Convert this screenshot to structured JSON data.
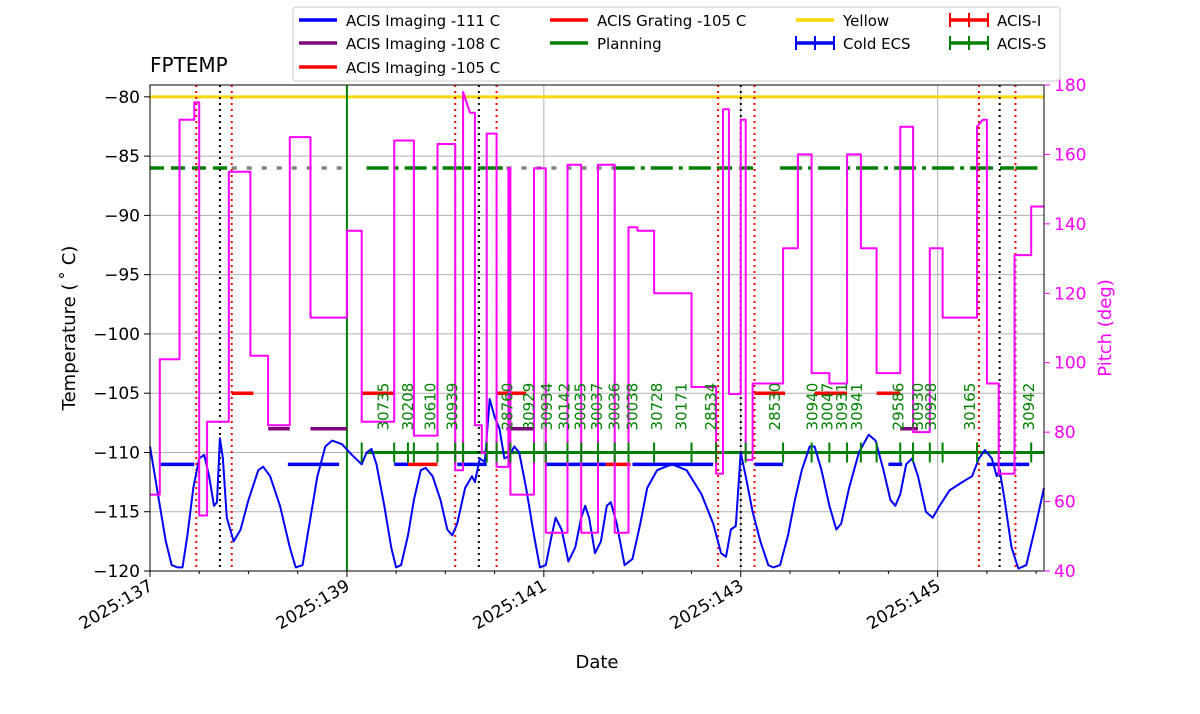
{
  "chart_data": {
    "type": "line",
    "title": "FPTEMP",
    "xlabel": "Date",
    "ylabel": "Temperature ( ˚ C)",
    "ylabel_text": "Temperature ($^\\circ$C)",
    "y2label": "Pitch (deg)",
    "xlim": [
      137.0,
      146.08
    ],
    "ylim": [
      -120,
      -79
    ],
    "y2lim": [
      40,
      180
    ],
    "grid": true,
    "x_ticks": [
      137,
      139,
      141,
      143,
      145
    ],
    "x_tick_labels": [
      "2025:137",
      "2025:139",
      "2025:141",
      "2025:143",
      "2025:145"
    ],
    "y_ticks": [
      -120,
      -115,
      -110,
      -105,
      -100,
      -95,
      -90,
      -85,
      -80
    ],
    "y_tick_labels": [
      "−120",
      "−115",
      "−110",
      "−105",
      "−100",
      "−95",
      "−90",
      "−85",
      "−80"
    ],
    "y2_ticks": [
      40,
      60,
      80,
      100,
      120,
      140,
      160,
      180
    ],
    "y2_tick_labels": [
      "40",
      "60",
      "80",
      "100",
      "120",
      "140",
      "160",
      "180"
    ],
    "colors": {
      "temp": "#0000ff",
      "pitch": "#ff00ff",
      "yellow": "#ffd700",
      "planning": "#008000",
      "red": "#ff0000",
      "purple": "#800080",
      "grey": "#808080",
      "black": "#000000"
    },
    "legend": {
      "placement": "top",
      "entries": [
        {
          "label": "ACIS Imaging -111 C",
          "color": "#0000ff",
          "marker": "line"
        },
        {
          "label": "ACIS Imaging -108 C",
          "color": "#800080",
          "marker": "line"
        },
        {
          "label": "ACIS Imaging -105 C",
          "color": "#ff0000",
          "marker": "line"
        },
        {
          "label": "ACIS Grating -105 C",
          "color": "#ff0000",
          "marker": "line"
        },
        {
          "label": "Planning",
          "color": "#008000",
          "marker": "line"
        },
        {
          "label": "Yellow",
          "color": "#ffd700",
          "marker": "line"
        },
        {
          "label": "Cold ECS",
          "color": "#0000ff",
          "marker": "plus"
        },
        {
          "label": "ACIS-I",
          "color": "#ff0000",
          "marker": "plus"
        },
        {
          "label": "ACIS-S",
          "color": "#008000",
          "marker": "plus"
        }
      ]
    },
    "yellow_limit": -80,
    "planning_limit_upper": -86,
    "planning_limit_lower": -110,
    "temperature_series": [
      [
        137.0,
        -109.5
      ],
      [
        137.08,
        -113.5
      ],
      [
        137.16,
        -117.5
      ],
      [
        137.22,
        -119.5
      ],
      [
        137.28,
        -119.7
      ],
      [
        137.33,
        -119.7
      ],
      [
        137.38,
        -117
      ],
      [
        137.44,
        -113
      ],
      [
        137.5,
        -110.5
      ],
      [
        137.55,
        -110.2
      ],
      [
        137.6,
        -112
      ],
      [
        137.65,
        -114.5
      ],
      [
        137.68,
        -114.2
      ],
      [
        137.71,
        -108.8
      ],
      [
        137.74,
        -110.5
      ],
      [
        137.78,
        -115.5
      ],
      [
        137.85,
        -117.5
      ],
      [
        137.92,
        -116.5
      ],
      [
        138.0,
        -114
      ],
      [
        138.1,
        -111.5
      ],
      [
        138.15,
        -111.2
      ],
      [
        138.22,
        -112
      ],
      [
        138.32,
        -114.5
      ],
      [
        138.42,
        -118
      ],
      [
        138.48,
        -119.7
      ],
      [
        138.55,
        -119.5
      ],
      [
        138.62,
        -116
      ],
      [
        138.7,
        -112
      ],
      [
        138.78,
        -109.5
      ],
      [
        138.85,
        -109
      ],
      [
        138.95,
        -109.3
      ],
      [
        139.05,
        -110.2
      ],
      [
        139.15,
        -111
      ],
      [
        139.2,
        -110
      ],
      [
        139.25,
        -109.7
      ],
      [
        139.3,
        -111
      ],
      [
        139.38,
        -114.5
      ],
      [
        139.45,
        -118
      ],
      [
        139.5,
        -119.7
      ],
      [
        139.55,
        -119.5
      ],
      [
        139.62,
        -117
      ],
      [
        139.68,
        -114
      ],
      [
        139.75,
        -111.5
      ],
      [
        139.8,
        -111.3
      ],
      [
        139.87,
        -112
      ],
      [
        139.95,
        -114
      ],
      [
        140.02,
        -116.5
      ],
      [
        140.07,
        -117
      ],
      [
        140.12,
        -116
      ],
      [
        140.2,
        -113
      ],
      [
        140.27,
        -112
      ],
      [
        140.3,
        -112.5
      ],
      [
        140.35,
        -110.5
      ],
      [
        140.4,
        -110.8
      ],
      [
        140.45,
        -105.5
      ],
      [
        140.5,
        -107
      ],
      [
        140.55,
        -108
      ],
      [
        140.6,
        -110.5
      ],
      [
        140.65,
        -110.3
      ],
      [
        140.7,
        -109.5
      ],
      [
        140.75,
        -110
      ],
      [
        140.82,
        -113
      ],
      [
        140.9,
        -117
      ],
      [
        140.96,
        -119.7
      ],
      [
        141.02,
        -119.5
      ],
      [
        141.08,
        -117
      ],
      [
        141.12,
        -115.5
      ],
      [
        141.18,
        -116.5
      ],
      [
        141.25,
        -119.2
      ],
      [
        141.32,
        -118
      ],
      [
        141.38,
        -115.5
      ],
      [
        141.42,
        -114.5
      ],
      [
        141.46,
        -115.5
      ],
      [
        141.52,
        -118.5
      ],
      [
        141.58,
        -117.5
      ],
      [
        141.64,
        -114.5
      ],
      [
        141.68,
        -114.2
      ],
      [
        141.74,
        -116
      ],
      [
        141.82,
        -119.5
      ],
      [
        141.9,
        -119
      ],
      [
        141.98,
        -116
      ],
      [
        142.05,
        -113
      ],
      [
        142.15,
        -111.5
      ],
      [
        142.3,
        -111
      ],
      [
        142.45,
        -111.5
      ],
      [
        142.6,
        -113.5
      ],
      [
        142.72,
        -116
      ],
      [
        142.8,
        -118.5
      ],
      [
        142.85,
        -118.8
      ],
      [
        142.9,
        -116.5
      ],
      [
        142.95,
        -116.2
      ],
      [
        143.0,
        -110
      ],
      [
        143.05,
        -112
      ],
      [
        143.12,
        -115
      ],
      [
        143.2,
        -117.5
      ],
      [
        143.28,
        -119.5
      ],
      [
        143.33,
        -119.7
      ],
      [
        143.4,
        -119.5
      ],
      [
        143.48,
        -117
      ],
      [
        143.55,
        -114
      ],
      [
        143.62,
        -111.5
      ],
      [
        143.7,
        -109.5
      ],
      [
        143.75,
        -109.5
      ],
      [
        143.82,
        -111.5
      ],
      [
        143.9,
        -114.5
      ],
      [
        143.97,
        -116.5
      ],
      [
        144.02,
        -116
      ],
      [
        144.1,
        -113
      ],
      [
        144.2,
        -110
      ],
      [
        144.3,
        -108.5
      ],
      [
        144.37,
        -109
      ],
      [
        144.45,
        -111.5
      ],
      [
        144.52,
        -114
      ],
      [
        144.57,
        -114.5
      ],
      [
        144.62,
        -113.5
      ],
      [
        144.68,
        -111
      ],
      [
        144.74,
        -110.5
      ],
      [
        144.8,
        -112
      ],
      [
        144.88,
        -115
      ],
      [
        144.95,
        -115.5
      ],
      [
        145.02,
        -114.5
      ],
      [
        145.12,
        -113.2
      ],
      [
        145.25,
        -112.5
      ],
      [
        145.35,
        -112
      ],
      [
        145.42,
        -110.5
      ],
      [
        145.48,
        -109.8
      ],
      [
        145.55,
        -110.5
      ],
      [
        145.6,
        -112
      ],
      [
        145.63,
        -111.5
      ],
      [
        145.68,
        -114
      ],
      [
        145.75,
        -118
      ],
      [
        145.82,
        -119.8
      ],
      [
        145.9,
        -119.5
      ],
      [
        146.0,
        -116
      ],
      [
        146.08,
        -113
      ]
    ],
    "pitch_series": [
      [
        137.0,
        62
      ],
      [
        137.1,
        62
      ],
      [
        137.1,
        101
      ],
      [
        137.3,
        101
      ],
      [
        137.3,
        170
      ],
      [
        137.45,
        170
      ],
      [
        137.45,
        175
      ],
      [
        137.5,
        175
      ],
      [
        137.5,
        56
      ],
      [
        137.58,
        56
      ],
      [
        137.58,
        83
      ],
      [
        137.8,
        83
      ],
      [
        137.8,
        155
      ],
      [
        138.02,
        155
      ],
      [
        138.02,
        102
      ],
      [
        138.2,
        102
      ],
      [
        138.2,
        82
      ],
      [
        138.42,
        82
      ],
      [
        138.42,
        165
      ],
      [
        138.63,
        165
      ],
      [
        138.63,
        113
      ],
      [
        139.0,
        113
      ],
      [
        139.0,
        138
      ],
      [
        139.15,
        138
      ],
      [
        139.15,
        83
      ],
      [
        139.48,
        83
      ],
      [
        139.48,
        164
      ],
      [
        139.68,
        164
      ],
      [
        139.68,
        79
      ],
      [
        139.92,
        79
      ],
      [
        139.92,
        163
      ],
      [
        140.1,
        163
      ],
      [
        140.1,
        69
      ],
      [
        140.18,
        69
      ],
      [
        140.18,
        178
      ],
      [
        140.25,
        172
      ],
      [
        140.3,
        172
      ],
      [
        140.3,
        82
      ],
      [
        140.37,
        82
      ],
      [
        140.37,
        74
      ],
      [
        140.42,
        74
      ],
      [
        140.42,
        166
      ],
      [
        140.52,
        166
      ],
      [
        140.52,
        70
      ],
      [
        140.64,
        70
      ],
      [
        140.64,
        156
      ],
      [
        140.66,
        156
      ],
      [
        140.66,
        62
      ],
      [
        140.9,
        62
      ],
      [
        140.9,
        156
      ],
      [
        141.02,
        156
      ],
      [
        141.02,
        51
      ],
      [
        141.24,
        51
      ],
      [
        141.24,
        157
      ],
      [
        141.38,
        157
      ],
      [
        141.38,
        51
      ],
      [
        141.55,
        51
      ],
      [
        141.55,
        157
      ],
      [
        141.72,
        157
      ],
      [
        141.72,
        51
      ],
      [
        141.86,
        51
      ],
      [
        141.86,
        139
      ],
      [
        141.95,
        139
      ],
      [
        141.95,
        138
      ],
      [
        142.12,
        138
      ],
      [
        142.12,
        120
      ],
      [
        142.5,
        120
      ],
      [
        142.5,
        93
      ],
      [
        142.75,
        93
      ],
      [
        142.75,
        68
      ],
      [
        142.82,
        68
      ],
      [
        142.82,
        173
      ],
      [
        142.88,
        173
      ],
      [
        142.88,
        91
      ],
      [
        143.0,
        91
      ],
      [
        143.0,
        170
      ],
      [
        143.05,
        170
      ],
      [
        143.05,
        72
      ],
      [
        143.12,
        72
      ],
      [
        143.12,
        94
      ],
      [
        143.43,
        94
      ],
      [
        143.43,
        133
      ],
      [
        143.58,
        133
      ],
      [
        143.58,
        160
      ],
      [
        143.72,
        160
      ],
      [
        143.72,
        97
      ],
      [
        143.9,
        97
      ],
      [
        143.9,
        94
      ],
      [
        144.08,
        94
      ],
      [
        144.08,
        160
      ],
      [
        144.22,
        160
      ],
      [
        144.22,
        133
      ],
      [
        144.38,
        133
      ],
      [
        144.38,
        97
      ],
      [
        144.62,
        97
      ],
      [
        144.62,
        168
      ],
      [
        144.75,
        168
      ],
      [
        144.75,
        80
      ],
      [
        144.92,
        80
      ],
      [
        144.92,
        133
      ],
      [
        145.05,
        133
      ],
      [
        145.05,
        113
      ],
      [
        145.4,
        113
      ],
      [
        145.4,
        168
      ],
      [
        145.46,
        170
      ],
      [
        145.5,
        170
      ],
      [
        145.5,
        94
      ],
      [
        145.62,
        94
      ],
      [
        145.62,
        68
      ],
      [
        145.78,
        68
      ],
      [
        145.78,
        131
      ],
      [
        145.95,
        131
      ],
      [
        145.95,
        145
      ],
      [
        146.08,
        145
      ]
    ],
    "vertical_lines": {
      "black_dotted": [
        137.71,
        140.34,
        143.0,
        145.63
      ],
      "red_dotted": [
        137.47,
        137.83,
        140.1,
        140.52,
        142.77,
        143.14,
        145.42,
        145.79
      ]
    },
    "limit_segments": [
      {
        "color": "#0000ff",
        "y": -111,
        "ranges": [
          [
            137.1,
            137.45
          ],
          [
            138.4,
            138.92
          ],
          [
            139.48,
            139.62
          ],
          [
            140.12,
            140.42
          ],
          [
            141.02,
            141.63
          ],
          [
            141.9,
            142.72
          ],
          [
            143.14,
            143.43
          ],
          [
            144.5,
            144.64
          ],
          [
            145.5,
            145.93
          ]
        ]
      },
      {
        "color": "#800080",
        "y": -108,
        "ranges": [
          [
            138.2,
            138.42
          ],
          [
            138.63,
            139.0
          ],
          [
            140.62,
            140.9
          ],
          [
            144.62,
            144.8
          ]
        ]
      },
      {
        "color": "#ff0000",
        "y": -105,
        "ranges": [
          [
            137.83,
            138.05
          ],
          [
            139.15,
            139.48
          ],
          [
            140.52,
            140.82
          ],
          [
            143.14,
            143.45
          ],
          [
            143.75,
            144.08
          ],
          [
            144.38,
            144.62
          ]
        ]
      },
      {
        "color": "#ff0000",
        "y": -111,
        "ranges": [
          [
            139.62,
            139.92
          ],
          [
            141.63,
            141.88
          ]
        ]
      }
    ],
    "planning_dashed_ranges": [
      [
        137.0,
        137.83
      ],
      [
        140.12,
        140.36
      ],
      [
        142.77,
        143.14
      ],
      [
        145.42,
        145.79
      ]
    ],
    "planning_dashdot_ranges": [
      [
        139.2,
        140.12
      ],
      [
        140.36,
        140.62
      ],
      [
        141.7,
        142.77
      ],
      [
        143.4,
        145.42
      ],
      [
        145.79,
        146.08
      ]
    ],
    "planning_grey_dash_ranges": [
      [
        137.83,
        139.0
      ],
      [
        140.62,
        141.7
      ]
    ],
    "obsids": [
      {
        "id": "30735",
        "x": 139.37
      },
      {
        "id": "30208",
        "x": 139.62
      },
      {
        "id": "30610",
        "x": 139.85
      },
      {
        "id": "30939",
        "x": 140.07
      },
      {
        "id": "28760",
        "x": 140.63
      },
      {
        "id": "30929",
        "x": 140.85
      },
      {
        "id": "30934",
        "x": 141.03
      },
      {
        "id": "30142",
        "x": 141.21
      },
      {
        "id": "30035",
        "x": 141.37
      },
      {
        "id": "30037",
        "x": 141.54
      },
      {
        "id": "30036",
        "x": 141.72
      },
      {
        "id": "30038",
        "x": 141.9
      },
      {
        "id": "30728",
        "x": 142.15
      },
      {
        "id": "30171",
        "x": 142.4
      },
      {
        "id": "28534",
        "x": 142.7
      },
      {
        "id": "28530",
        "x": 143.35
      },
      {
        "id": "30940",
        "x": 143.73
      },
      {
        "id": "30047",
        "x": 143.88
      },
      {
        "id": "30931",
        "x": 144.03
      },
      {
        "id": "30941",
        "x": 144.18
      },
      {
        "id": "29586",
        "x": 144.6
      },
      {
        "id": "30930",
        "x": 144.8
      },
      {
        "id": "30928",
        "x": 144.93
      },
      {
        "id": "30165",
        "x": 145.33
      },
      {
        "id": "30942",
        "x": 145.93
      }
    ],
    "acis_s_marks": [
      139.15,
      139.48,
      139.62,
      139.68,
      139.92,
      140.1,
      140.18,
      140.42,
      140.52,
      140.66,
      140.9,
      141.02,
      141.24,
      141.38,
      141.55,
      141.72,
      141.86,
      142.12,
      142.5,
      142.75,
      143.05,
      143.43,
      143.72,
      143.9,
      144.08,
      144.22,
      144.38,
      144.62,
      144.75,
      144.92,
      145.05,
      145.4,
      145.95
    ]
  }
}
